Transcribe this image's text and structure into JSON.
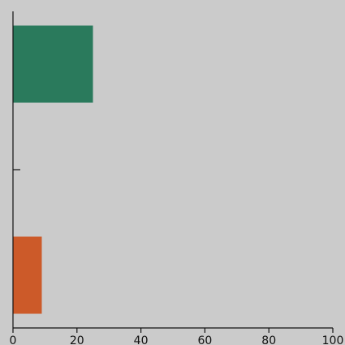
{
  "chart_data": {
    "type": "bar",
    "orientation": "horizontal",
    "title": "",
    "xlabel": "",
    "ylabel": "",
    "xlim": [
      0,
      100
    ],
    "x_ticks": [
      0,
      20,
      40,
      60,
      80,
      100
    ],
    "x_tick_labels": [
      "0",
      "20",
      "40",
      "60",
      "80",
      "100"
    ],
    "grid": false,
    "legend": "none",
    "categories": [
      "",
      "",
      ""
    ],
    "values": [
      25,
      0,
      9
    ],
    "colors": [
      "#2a7a5c",
      "#cbcbcb",
      "#cc5a29"
    ],
    "background": "#cbcbcb"
  }
}
